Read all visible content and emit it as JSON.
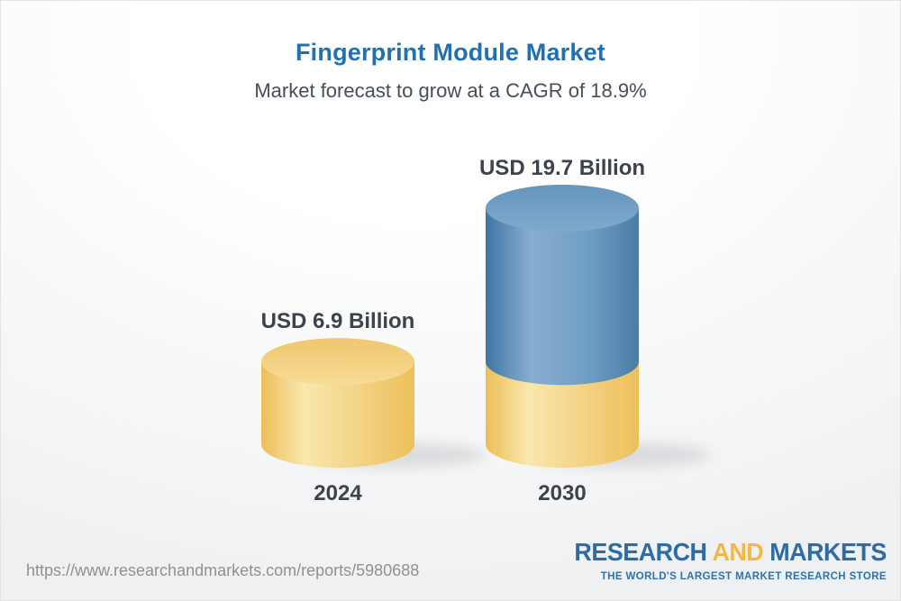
{
  "page": {
    "title": "Fingerprint Module Market",
    "subtitle": "Market forecast to grow at a CAGR of 18.9%"
  },
  "chart_data": {
    "type": "bar",
    "subtype": "3d-cylinder",
    "categories": [
      "2024",
      "2030"
    ],
    "values": [
      6.9,
      19.7
    ],
    "value_labels": [
      "USD 6.9 Billion",
      "USD 19.7 Billion"
    ],
    "unit": "USD Billion",
    "cagr_percent": 18.9,
    "title": "Fingerprint Module Market",
    "xlabel": "",
    "ylabel": "",
    "grid": false,
    "legend": false,
    "colors": {
      "gold_bar": "#F2CE7E",
      "gold_bar_highlight": "#F9E7AE",
      "gold_bar_edge": "#EDBE58",
      "blue_bar": "#6E9DC4",
      "blue_bar_highlight": "#88AECF",
      "blue_bar_edge": "#3F75A5",
      "label_color": "#3C434C"
    },
    "note": "2030 bar base segment repeats 2024 value in gold; growth portion shown in blue"
  },
  "footer": {
    "url": "https://www.researchandmarkets.com/reports/5980688",
    "logo": {
      "part1": "RESEARCH",
      "part2": "AND",
      "part3": "MARKETS",
      "tagline": "THE WORLD'S LARGEST MARKET RESEARCH STORE",
      "blue": "#2D6CA5",
      "gold": "#F2B844"
    }
  }
}
